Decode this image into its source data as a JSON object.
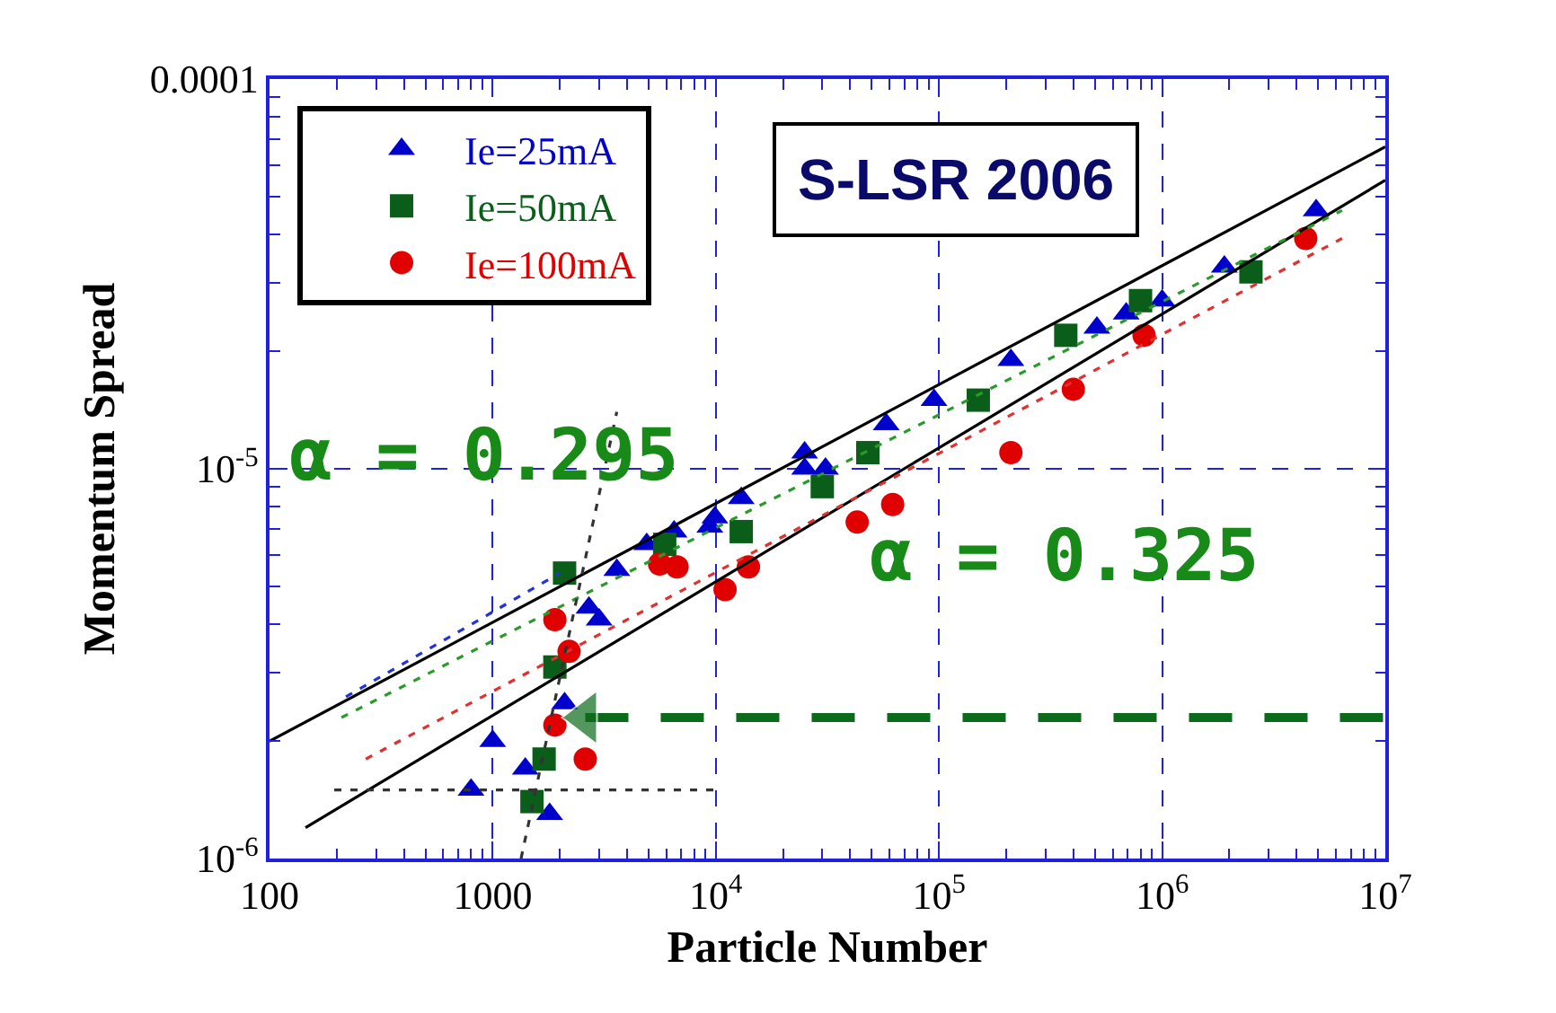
{
  "chart_data": {
    "type": "scatter",
    "xlabel": "Particle Number",
    "ylabel": "Momentum Spread",
    "log": "xy",
    "xlim": [
      100,
      10000000
    ],
    "ylim": [
      1e-06,
      0.0001
    ],
    "xticks": [
      100,
      1000,
      {
        "value": 10000,
        "label": "10$^{4}$"
      },
      {
        "value": 100000,
        "label": "10$^{5}$"
      },
      {
        "value": 1000000,
        "label": "10$^{6}$"
      },
      {
        "value": 10000000,
        "label": "10$^{7}$"
      }
    ],
    "yticks": [
      {
        "value": 1e-06,
        "label": "10$^{-6}$"
      },
      {
        "value": 1e-05,
        "label": "10$^{-5}$"
      },
      0.0001
    ],
    "grid": true,
    "legend": "top left",
    "annotations": [
      "S-LSR 2006",
      "α = 0.295",
      "α = 0.325"
    ],
    "series": [
      {
        "name": "Ie=25mA",
        "color": "#0000cc",
        "marker": "triangle",
        "x": [
          800,
          1000,
          1400,
          1800,
          2100,
          2700,
          3000,
          3600,
          4900,
          6500,
          9400,
          9900,
          13000,
          25000,
          25000,
          31000,
          58000,
          95000,
          210000,
          510000,
          690000,
          1000000,
          1900000,
          4900000
        ],
        "values": [
          1.5e-06,
          2e-06,
          1.7e-06,
          1.3e-06,
          2.5e-06,
          4.4e-06,
          4.1e-06,
          5.5e-06,
          6.4e-06,
          6.9e-06,
          7.1e-06,
          7.5e-06,
          8.4e-06,
          1e-05,
          1.1e-05,
          1e-05,
          1.3e-05,
          1.5e-05,
          1.9e-05,
          2.3e-05,
          2.5e-05,
          2.7e-05,
          3.3e-05,
          4.6e-05
        ]
      },
      {
        "name": "Ie=50mA",
        "color": "#0b5e1a",
        "marker": "square",
        "x": [
          1500,
          1700,
          1900,
          2100,
          5900,
          13000,
          30000,
          48000,
          150000,
          370000,
          800000,
          2500000
        ],
        "values": [
          1.4e-06,
          1.8e-06,
          3.1e-06,
          5.4e-06,
          6.4e-06,
          6.9e-06,
          9e-06,
          1.1e-05,
          1.5e-05,
          2.2e-05,
          2.7e-05,
          3.2e-05
        ]
      },
      {
        "name": "Ie=100mA",
        "color": "#e00000",
        "marker": "circle",
        "x": [
          1900,
          1900,
          2200,
          2600,
          5600,
          6700,
          11000,
          14000,
          43000,
          62000,
          210000,
          400000,
          830000,
          4400000
        ],
        "values": [
          2.2e-06,
          4.1e-06,
          3.4e-06,
          1.8e-06,
          5.7e-06,
          5.6e-06,
          4.9e-06,
          5.6e-06,
          7.3e-06,
          8.1e-06,
          1.1e-05,
          1.6e-05,
          2.2e-05,
          3.9e-05
        ]
      },
      {
        "type": "line",
        "color": "#000000",
        "line_style": "solid",
        "x": [
          100,
          10000000
        ],
        "values": [
          2e-06,
          6.7e-05
        ]
      },
      {
        "type": "line",
        "color": "#000000",
        "line_style": "solid",
        "x": [
          145,
          10000000
        ],
        "values": [
          1.2e-06,
          5.5e-05
        ]
      },
      {
        "type": "line",
        "color": "#2233dd",
        "line_style": "dashed",
        "x": [
          220,
          2000
        ],
        "values": [
          2.6e-06,
          5.4e-06
        ]
      },
      {
        "type": "line",
        "color": "#2a9a2a",
        "line_style": "dashed",
        "x": [
          210,
          6400000
        ],
        "values": [
          2.3e-06,
          4.6e-05
        ]
      },
      {
        "type": "line",
        "color": "#e03030",
        "line_style": "dashed",
        "x": [
          270,
          6400000
        ],
        "values": [
          1.8e-06,
          3.9e-05
        ]
      },
      {
        "type": "line",
        "color": "#333333",
        "line_style": "dashed",
        "x": [
          195,
          10000
        ],
        "values": [
          1.5e-06,
          1.5e-06
        ]
      },
      {
        "type": "line",
        "color": "#333333",
        "line_style": "dashed",
        "x": [
          1340,
          3600
        ],
        "values": [
          1e-06,
          1.4e-05
        ]
      },
      {
        "type": "line",
        "color": "#0b6b1b",
        "line_style": "dashed",
        "marker": "triangle",
        "x": [
          2600,
          10000000
        ],
        "values": [
          2.3e-06,
          2.3e-06
        ]
      }
    ]
  }
}
